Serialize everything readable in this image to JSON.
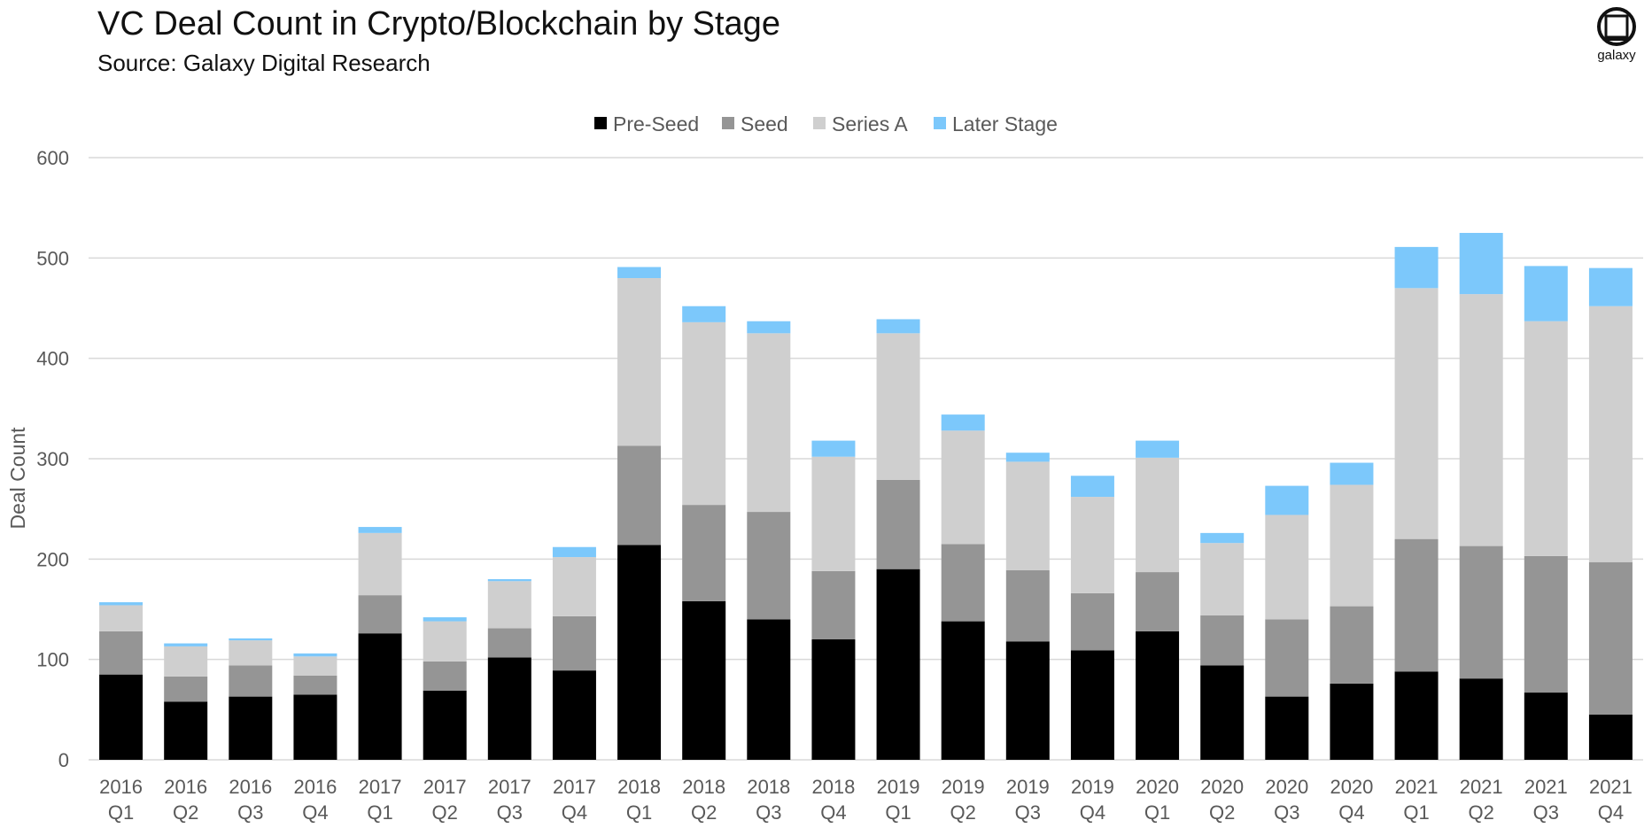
{
  "header": {
    "title": "VC Deal Count in Crypto/Blockchain by Stage",
    "subtitle": "Source: Galaxy Digital Research"
  },
  "logo": {
    "text": "galaxy",
    "icon": "galaxy-logo-icon"
  },
  "colors": {
    "pre_seed": "#000000",
    "seed": "#959595",
    "series_a": "#cfcfcf",
    "later_stage": "#7cc8fb",
    "grid": "#d9d9d9",
    "axis_text": "#595959"
  },
  "chart_data": {
    "type": "bar",
    "stacked": true,
    "ylabel": "Deal Count",
    "ylim": [
      0,
      600
    ],
    "yticks": [
      "0",
      "100",
      "200",
      "300",
      "400",
      "500",
      "600"
    ],
    "grid": true,
    "legend_position": "top-center",
    "categories": [
      [
        "2016",
        "Q1"
      ],
      [
        "2016",
        "Q2"
      ],
      [
        "2016",
        "Q3"
      ],
      [
        "2016",
        "Q4"
      ],
      [
        "2017",
        "Q1"
      ],
      [
        "2017",
        "Q2"
      ],
      [
        "2017",
        "Q3"
      ],
      [
        "2017",
        "Q4"
      ],
      [
        "2018",
        "Q1"
      ],
      [
        "2018",
        "Q2"
      ],
      [
        "2018",
        "Q3"
      ],
      [
        "2018",
        "Q4"
      ],
      [
        "2019",
        "Q1"
      ],
      [
        "2019",
        "Q2"
      ],
      [
        "2019",
        "Q3"
      ],
      [
        "2019",
        "Q4"
      ],
      [
        "2020",
        "Q1"
      ],
      [
        "2020",
        "Q2"
      ],
      [
        "2020",
        "Q3"
      ],
      [
        "2020",
        "Q4"
      ],
      [
        "2021",
        "Q1"
      ],
      [
        "2021",
        "Q2"
      ],
      [
        "2021",
        "Q3"
      ],
      [
        "2021",
        "Q4"
      ]
    ],
    "series": [
      {
        "name": "Pre-Seed",
        "color_key": "pre_seed",
        "values": [
          85,
          58,
          63,
          65,
          126,
          69,
          102,
          89,
          214,
          158,
          140,
          120,
          190,
          138,
          118,
          109,
          128,
          94,
          63,
          76,
          88,
          81,
          67,
          45
        ]
      },
      {
        "name": "Seed",
        "color_key": "seed",
        "values": [
          43,
          25,
          31,
          19,
          38,
          29,
          29,
          54,
          99,
          96,
          107,
          68,
          89,
          77,
          71,
          57,
          59,
          50,
          77,
          77,
          132,
          132,
          136,
          152
        ]
      },
      {
        "name": "Series A",
        "color_key": "series_a",
        "values": [
          26,
          30,
          25,
          19,
          62,
          40,
          47,
          59,
          167,
          182,
          178,
          114,
          146,
          113,
          108,
          96,
          114,
          72,
          104,
          121,
          250,
          251,
          234,
          255
        ]
      },
      {
        "name": "Later Stage",
        "color_key": "later_stage",
        "values": [
          3,
          3,
          2,
          3,
          6,
          4,
          2,
          10,
          11,
          16,
          12,
          16,
          14,
          16,
          9,
          21,
          17,
          10,
          29,
          22,
          41,
          61,
          55,
          38
        ]
      }
    ]
  }
}
